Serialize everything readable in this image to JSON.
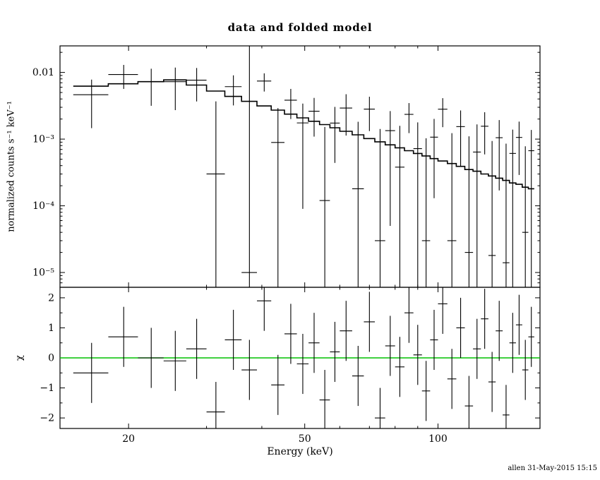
{
  "title": "data and folded model",
  "footer": "allen 31-May-2015 15:15",
  "chart_data": {
    "type": "line",
    "subtype": "xspec-spectrum-with-residuals",
    "title": "data and folded model",
    "xlabel": "Energy (keV)",
    "ylabel_top": "normalized counts s⁻¹ keV⁻¹",
    "ylabel_bottom": "χ",
    "x_scale": "log",
    "y_scale_top": "log",
    "y_scale_bottom": "linear",
    "xlim": [
      14,
      170
    ],
    "ylim_top": [
      6e-06,
      0.025
    ],
    "ylim_bottom": [
      -2.35,
      2.35
    ],
    "grid": false,
    "legend": false,
    "model_color": "#000000",
    "data_color": "#000000",
    "zero_line_color": "#00c000",
    "x_ticks": [
      {
        "value": 20,
        "label": "20"
      },
      {
        "value": 50,
        "label": "50"
      },
      {
        "value": 100,
        "label": "100"
      }
    ],
    "y_ticks_top": [
      {
        "value": 0.01,
        "label": "0.01"
      },
      {
        "value": 0.001,
        "label": "10⁻³"
      },
      {
        "value": 0.0001,
        "label": "10⁻⁴"
      },
      {
        "value": 1e-05,
        "label": "10⁻⁵"
      }
    ],
    "y_ticks_bottom": [
      {
        "value": 2,
        "label": "2"
      },
      {
        "value": 1,
        "label": "1"
      },
      {
        "value": 0,
        "label": "0"
      },
      {
        "value": -1,
        "label": "−1"
      },
      {
        "value": -2,
        "label": "−2"
      }
    ],
    "columns": [
      "e_lo_keV",
      "e_hi_keV",
      "model",
      "data",
      "err",
      "chi"
    ],
    "bins": [
      [
        15,
        18,
        0.00621,
        0.00463,
        0.00317,
        -0.5
      ],
      [
        18,
        21,
        0.00675,
        0.00931,
        0.00365,
        0.7
      ],
      [
        21,
        24,
        0.00726,
        0.00726,
        0.0041,
        0.0
      ],
      [
        24,
        27,
        0.00772,
        0.00727,
        0.00455,
        -0.1
      ],
      [
        27,
        30,
        0.00646,
        0.00766,
        0.00399,
        0.3
      ],
      [
        30,
        33,
        0.00526,
        0.0003,
        0.00338,
        -1.8
      ],
      [
        33,
        36,
        0.00437,
        0.00612,
        0.00292,
        0.6
      ],
      [
        36,
        39,
        0.00368,
        1e-05,
        0.026,
        -0.4
      ],
      [
        39,
        42,
        0.00314,
        0.00743,
        0.00226,
        1.9
      ],
      [
        42,
        45,
        0.00272,
        0.00089,
        0.00203,
        -0.9
      ],
      [
        45,
        48,
        0.00237,
        0.00383,
        0.00183,
        0.8
      ],
      [
        48,
        51,
        0.00208,
        0.00175,
        0.00166,
        -0.2
      ],
      [
        51,
        54,
        0.00185,
        0.00262,
        0.00153,
        0.5
      ],
      [
        54,
        57,
        0.00165,
        0.00012,
        0.0014,
        -1.4
      ],
      [
        57,
        60,
        0.00148,
        0.00174,
        0.0013,
        0.2
      ],
      [
        60,
        64,
        0.00131,
        0.00292,
        0.00179,
        0.9
      ],
      [
        64,
        68,
        0.00116,
        0.00018,
        0.00164,
        -0.6
      ],
      [
        68,
        72,
        0.00102,
        0.00282,
        0.0015,
        1.2
      ],
      [
        72,
        76,
        0.00091,
        3e-05,
        0.00139,
        -2.0
      ],
      [
        76,
        80,
        0.00082,
        0.00134,
        0.00129,
        0.4
      ],
      [
        80,
        84,
        0.00074,
        0.00038,
        0.0012,
        -0.3
      ],
      [
        84,
        88,
        0.00067,
        0.00235,
        0.00112,
        1.5
      ],
      [
        88,
        92,
        0.00061,
        0.00072,
        0.00106,
        0.1
      ],
      [
        92,
        96,
        0.00056,
        3e-05,
        0.001,
        -1.1
      ],
      [
        96,
        100,
        0.00051,
        0.00107,
        0.00094,
        0.6
      ],
      [
        100,
        105,
        0.00047,
        0.00281,
        0.0013,
        1.8
      ],
      [
        105,
        110,
        0.00043,
        3e-05,
        0.0012,
        -0.7
      ],
      [
        110,
        115,
        0.00039,
        0.00154,
        0.00115,
        1.0
      ],
      [
        115,
        120,
        0.00035,
        2e-05,
        0.00108,
        -1.6
      ],
      [
        120,
        125,
        0.00033,
        0.00064,
        0.00102,
        0.3
      ],
      [
        125,
        130,
        0.0003,
        0.00156,
        0.00097,
        1.3
      ],
      [
        130,
        135,
        0.00028,
        1.8e-05,
        0.00092,
        -0.8
      ],
      [
        135,
        140,
        0.00026,
        0.00105,
        0.00088,
        0.9
      ],
      [
        140,
        145,
        0.00024,
        1.4e-05,
        0.00084,
        -1.9
      ],
      [
        145,
        150,
        0.00022,
        0.00061,
        0.00078,
        0.5
      ],
      [
        150,
        155,
        0.00021,
        0.00106,
        0.00077,
        1.1
      ],
      [
        155,
        160,
        0.00019,
        4e-05,
        0.00074,
        -0.4
      ],
      [
        160,
        165,
        0.00018,
        0.00067,
        0.0007,
        0.7
      ]
    ]
  }
}
